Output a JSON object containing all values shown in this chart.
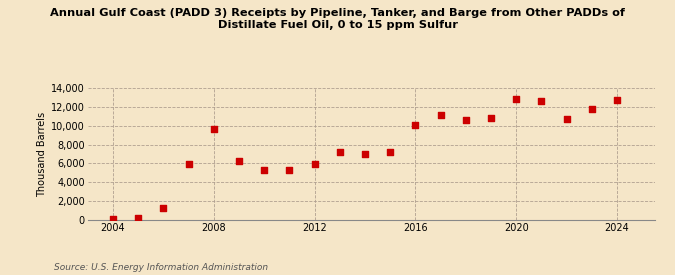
{
  "title": "Annual Gulf Coast (PADD 3) Receipts by Pipeline, Tanker, and Barge from Other PADDs of\nDistillate Fuel Oil, 0 to 15 ppm Sulfur",
  "ylabel": "Thousand Barrels",
  "source": "Source: U.S. Energy Information Administration",
  "background_color": "#f5e6c8",
  "plot_bg_color": "#f5e6c8",
  "marker_color": "#cc0000",
  "marker": "s",
  "marker_size": 4,
  "xlim": [
    2003.0,
    2025.5
  ],
  "ylim": [
    0,
    14000
  ],
  "yticks": [
    0,
    2000,
    4000,
    6000,
    8000,
    10000,
    12000,
    14000
  ],
  "xticks": [
    2004,
    2008,
    2012,
    2016,
    2020,
    2024
  ],
  "data": {
    "years": [
      2004,
      2005,
      2006,
      2007,
      2008,
      2009,
      2010,
      2011,
      2012,
      2013,
      2014,
      2015,
      2016,
      2017,
      2018,
      2019,
      2020,
      2021,
      2022,
      2023,
      2024
    ],
    "values": [
      100,
      200,
      1300,
      5900,
      9700,
      6300,
      5300,
      5300,
      5900,
      7200,
      7000,
      7200,
      10100,
      11100,
      10600,
      10800,
      12800,
      12600,
      10700,
      11800,
      12700
    ]
  }
}
